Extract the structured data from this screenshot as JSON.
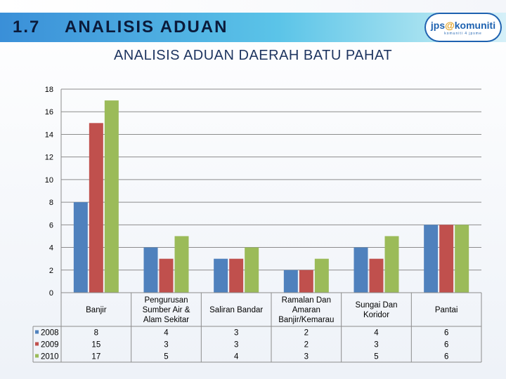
{
  "slide": {
    "number": "1.7",
    "title": "ANALISIS ADUAN",
    "logo": {
      "text_left": "jps",
      "text_mid": "@",
      "text_right": "komuniti",
      "subtext": "komuniti 4 jpsme"
    }
  },
  "colors": {
    "2008": "#4f81bd",
    "2009": "#c0504d",
    "2010": "#9bbb59"
  },
  "chart_data": {
    "type": "bar",
    "title": "ANALISIS ADUAN DAERAH BATU PAHAT",
    "xlabel": "",
    "ylabel": "",
    "ylim": [
      0,
      18
    ],
    "yticks": [
      0,
      2,
      4,
      6,
      8,
      10,
      12,
      14,
      16,
      18
    ],
    "grid": true,
    "legend": "data-table-left",
    "categories": [
      [
        "Banjir"
      ],
      [
        "Pengurusan",
        "Sumber Air &",
        "Alam Sekitar"
      ],
      [
        "Saliran Bandar"
      ],
      [
        "Ramalan Dan",
        "Amaran",
        "Banjir/Kemarau"
      ],
      [
        "Sungai Dan",
        "Koridor"
      ],
      [
        "Pantai"
      ]
    ],
    "series": [
      {
        "name": "2008",
        "values": [
          8,
          4,
          3,
          2,
          4,
          6
        ]
      },
      {
        "name": "2009",
        "values": [
          15,
          3,
          3,
          2,
          3,
          6
        ]
      },
      {
        "name": "2010",
        "values": [
          17,
          5,
          4,
          3,
          5,
          6
        ]
      }
    ]
  }
}
